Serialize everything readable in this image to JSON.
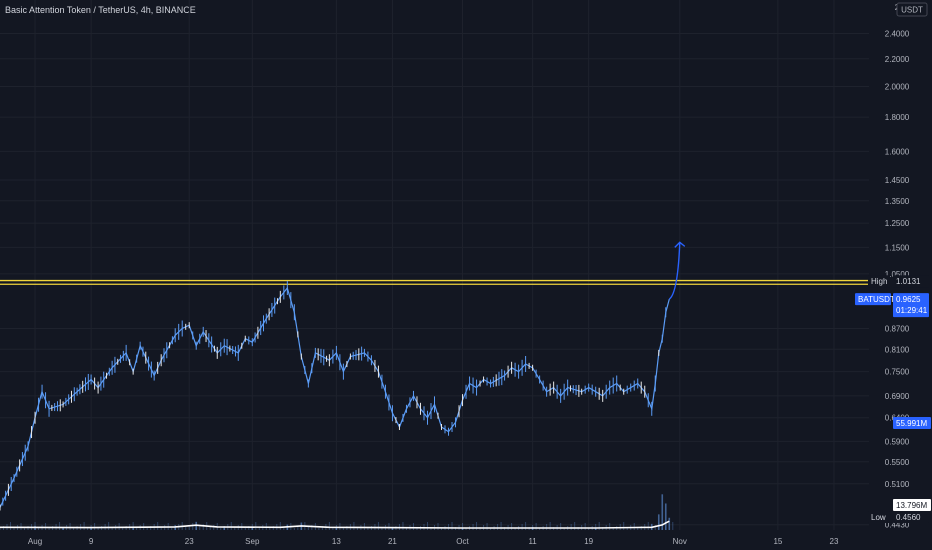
{
  "header": {
    "symbol_name": "Basic Attention Token / TetherUS",
    "interval": "4h",
    "exchange": "BINANCE",
    "separator_1": ", ",
    "separator_2": ", "
  },
  "currency_label": "USDT",
  "colors": {
    "background": "#131722",
    "grid": "#1e222d",
    "candle": "#5b9cf6",
    "candle_alt": "#e8e8e8",
    "level_line": "#f0d53c",
    "arrow": "#2962ff",
    "volume": "#4a6fa5",
    "volume_ma": "#ffffff",
    "axis_text": "#b2b5be"
  },
  "chart_data": {
    "type": "line",
    "title": "Basic Attention Token / TetherUS, 4h, BINANCE",
    "symbol": "BATUSDT",
    "y_axis": {
      "scale": "log",
      "range": [
        0.435,
        2.62
      ],
      "currency": "USDT",
      "tick_labels": [
        "2.4000",
        "2.2000",
        "2.0000",
        "1.8000",
        "1.6000",
        "1.4500",
        "1.3500",
        "1.2500",
        "1.1500",
        "1.0500",
        "0.8700",
        "0.8100",
        "0.7500",
        "0.6900",
        "0.6400",
        "0.5900",
        "0.5500",
        "0.5100",
        "0.4430"
      ],
      "top_partial_label": "2"
    },
    "x_axis": {
      "range": [
        "2021-07-27",
        "2021-11-28"
      ],
      "tick_labels": [
        {
          "label": "Aug",
          "date": "2021-08-01"
        },
        {
          "label": "9",
          "date": "2021-08-09"
        },
        {
          "label": "23",
          "date": "2021-08-23"
        },
        {
          "label": "Sep",
          "date": "2021-09-01"
        },
        {
          "label": "13",
          "date": "2021-09-13"
        },
        {
          "label": "21",
          "date": "2021-09-21"
        },
        {
          "label": "Oct",
          "date": "2021-10-01"
        },
        {
          "label": "11",
          "date": "2021-10-11"
        },
        {
          "label": "19",
          "date": "2021-10-19"
        },
        {
          "label": "Nov",
          "date": "2021-11-01"
        },
        {
          "label": "15",
          "date": "2021-11-15"
        },
        {
          "label": "23",
          "date": "2021-11-23"
        }
      ]
    },
    "price_path": [
      [
        "2021-07-27",
        0.47
      ],
      [
        "2021-07-29",
        0.52
      ],
      [
        "2021-07-31",
        0.58
      ],
      [
        "2021-08-01",
        0.64
      ],
      [
        "2021-08-02",
        0.7
      ],
      [
        "2021-08-03",
        0.66
      ],
      [
        "2021-08-05",
        0.67
      ],
      [
        "2021-08-07",
        0.7
      ],
      [
        "2021-08-09",
        0.73
      ],
      [
        "2021-08-10",
        0.71
      ],
      [
        "2021-08-12",
        0.76
      ],
      [
        "2021-08-14",
        0.8
      ],
      [
        "2021-08-15",
        0.75
      ],
      [
        "2021-08-16",
        0.82
      ],
      [
        "2021-08-18",
        0.74
      ],
      [
        "2021-08-19",
        0.78
      ],
      [
        "2021-08-21",
        0.85
      ],
      [
        "2021-08-22",
        0.87
      ],
      [
        "2021-08-23",
        0.88
      ],
      [
        "2021-08-24",
        0.82
      ],
      [
        "2021-08-25",
        0.86
      ],
      [
        "2021-08-27",
        0.8
      ],
      [
        "2021-08-28",
        0.82
      ],
      [
        "2021-08-30",
        0.8
      ],
      [
        "2021-08-31",
        0.84
      ],
      [
        "2021-09-01",
        0.83
      ],
      [
        "2021-09-03",
        0.9
      ],
      [
        "2021-09-05",
        0.97
      ],
      [
        "2021-09-06",
        1.0
      ],
      [
        "2021-09-07",
        0.92
      ],
      [
        "2021-09-08",
        0.79
      ],
      [
        "2021-09-09",
        0.72
      ],
      [
        "2021-09-10",
        0.8
      ],
      [
        "2021-09-12",
        0.78
      ],
      [
        "2021-09-13",
        0.8
      ],
      [
        "2021-09-14",
        0.75
      ],
      [
        "2021-09-15",
        0.79
      ],
      [
        "2021-09-17",
        0.8
      ],
      [
        "2021-09-18",
        0.78
      ],
      [
        "2021-09-19",
        0.75
      ],
      [
        "2021-09-20",
        0.7
      ],
      [
        "2021-09-21",
        0.65
      ],
      [
        "2021-09-22",
        0.62
      ],
      [
        "2021-09-23",
        0.66
      ],
      [
        "2021-09-24",
        0.69
      ],
      [
        "2021-09-25",
        0.66
      ],
      [
        "2021-09-26",
        0.64
      ],
      [
        "2021-09-27",
        0.67
      ],
      [
        "2021-09-28",
        0.62
      ],
      [
        "2021-09-29",
        0.61
      ],
      [
        "2021-09-30",
        0.63
      ],
      [
        "2021-10-01",
        0.68
      ],
      [
        "2021-10-02",
        0.72
      ],
      [
        "2021-10-03",
        0.71
      ],
      [
        "2021-10-04",
        0.73
      ],
      [
        "2021-10-05",
        0.72
      ],
      [
        "2021-10-07",
        0.74
      ],
      [
        "2021-10-08",
        0.76
      ],
      [
        "2021-10-09",
        0.75
      ],
      [
        "2021-10-10",
        0.77
      ],
      [
        "2021-10-11",
        0.76
      ],
      [
        "2021-10-12",
        0.73
      ],
      [
        "2021-10-13",
        0.7
      ],
      [
        "2021-10-14",
        0.71
      ],
      [
        "2021-10-15",
        0.69
      ],
      [
        "2021-10-16",
        0.71
      ],
      [
        "2021-10-18",
        0.7
      ],
      [
        "2021-10-19",
        0.71
      ],
      [
        "2021-10-20",
        0.7
      ],
      [
        "2021-10-21",
        0.69
      ],
      [
        "2021-10-22",
        0.71
      ],
      [
        "2021-10-23",
        0.72
      ],
      [
        "2021-10-24",
        0.7
      ],
      [
        "2021-10-25",
        0.71
      ],
      [
        "2021-10-26",
        0.72
      ],
      [
        "2021-10-27",
        0.7
      ],
      [
        "2021-10-28",
        0.66
      ],
      [
        "2021-10-28T12:00",
        0.72
      ],
      [
        "2021-10-29",
        0.8
      ],
      [
        "2021-10-29T12:00",
        0.84
      ],
      [
        "2021-10-30",
        0.92
      ],
      [
        "2021-10-30T12:00",
        0.9625
      ]
    ],
    "levels": [
      {
        "name": "High",
        "value": 1.0131,
        "label": "High",
        "value_label": "1.0131"
      },
      {
        "name": "upper",
        "value": 1.026
      }
    ],
    "last_price": {
      "symbol": "BATUSDT",
      "value": 0.9625,
      "value_label": "0.9625",
      "countdown": "01:29:41"
    },
    "projection_arrow": {
      "from": [
        "2021-10-30T12:00",
        0.9625
      ],
      "to": [
        "2021-11-01",
        1.17
      ]
    },
    "volume": {
      "current_label": "55.991M",
      "ma_label": "13.796M",
      "baseline_min": 0.435,
      "bars": [
        [
          "2021-08-01",
          1.2
        ],
        [
          "2021-08-05",
          0.8
        ],
        [
          "2021-08-09",
          0.7
        ],
        [
          "2021-08-15",
          1.0
        ],
        [
          "2021-08-21",
          1.4
        ],
        [
          "2021-08-24",
          2.4
        ],
        [
          "2021-08-28",
          1.1
        ],
        [
          "2021-09-01",
          0.7
        ],
        [
          "2021-09-06",
          1.6
        ],
        [
          "2021-09-08",
          2.2
        ],
        [
          "2021-09-13",
          0.9
        ],
        [
          "2021-09-21",
          0.8
        ],
        [
          "2021-10-01",
          0.6
        ],
        [
          "2021-10-11",
          0.9
        ],
        [
          "2021-10-20",
          0.6
        ],
        [
          "2021-10-28",
          1.8
        ],
        [
          "2021-10-29",
          4.6
        ],
        [
          "2021-10-29T12:00",
          10.5
        ],
        [
          "2021-10-30",
          7.8
        ],
        [
          "2021-10-30T12:00",
          3.6
        ]
      ],
      "ma_path": [
        [
          "2021-07-27",
          0.8
        ],
        [
          "2021-08-09",
          0.7
        ],
        [
          "2021-08-21",
          0.9
        ],
        [
          "2021-08-24",
          1.4
        ],
        [
          "2021-08-27",
          0.9
        ],
        [
          "2021-09-05",
          0.8
        ],
        [
          "2021-09-08",
          1.2
        ],
        [
          "2021-09-12",
          0.8
        ],
        [
          "2021-10-01",
          0.6
        ],
        [
          "2021-10-20",
          0.6
        ],
        [
          "2021-10-28",
          0.8
        ],
        [
          "2021-10-29T12:00",
          1.5
        ],
        [
          "2021-10-30",
          2.1
        ],
        [
          "2021-10-30T12:00",
          2.6
        ]
      ]
    },
    "low_label": {
      "label": "Low",
      "value": 0.456,
      "value_label": "0.4560"
    }
  }
}
